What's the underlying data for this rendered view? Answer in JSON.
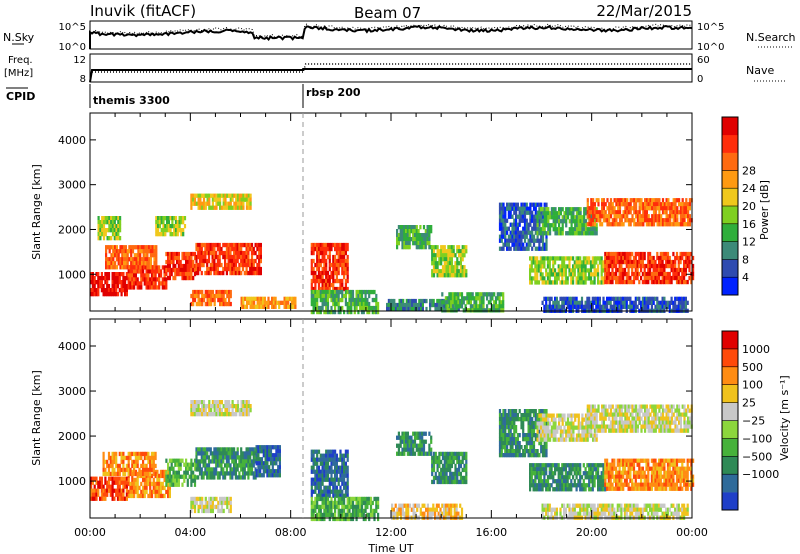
{
  "header": {
    "station": "Inuvik (fitACF)",
    "beam": "Beam 07",
    "date": "22/Mar/2015"
  },
  "top_panels": {
    "nsky_label": "N.Sky",
    "nsky_ticks": [
      "10^5",
      "10^0"
    ],
    "nsearch_label": "N.Search",
    "nsearch_ticks": [
      "10^5",
      "10^0"
    ],
    "freq_label_1": "Freq.",
    "freq_label_2": "[MHz]",
    "freq_ticks": [
      "12",
      "8"
    ],
    "nave_label": "Nave",
    "nave_ticks": [
      "60",
      "0"
    ],
    "cpid_label": "CPID",
    "cpid_modes": [
      {
        "name": "themis 3300",
        "start_hour": 0
      },
      {
        "name": "rbsp 200",
        "start_hour": 8.5
      }
    ]
  },
  "chart_data": [
    {
      "type": "heatmap",
      "title": "",
      "xlabel": "",
      "ylabel": "Slant Range [km]",
      "x_range_hours": [
        0,
        24
      ],
      "ylim": [
        180,
        4600
      ],
      "xticks": [
        "00:00",
        "04:00",
        "08:00",
        "12:00",
        "16:00",
        "20:00",
        "00:00"
      ],
      "yticks": [
        1000,
        2000,
        3000,
        4000
      ],
      "colorbar": {
        "label": "Power [dB]",
        "ticks": [
          "4",
          "8",
          "12",
          "16",
          "20",
          "24",
          "28"
        ],
        "colors": [
          "#0022ff",
          "#2f4bb0",
          "#3c8a78",
          "#2fae3b",
          "#7fd020",
          "#f0c81c",
          "#ff9a12",
          "#ff6a10",
          "#ff2d0a",
          "#e00000"
        ]
      },
      "regions": [
        {
          "t0": 0.0,
          "t1": 1.5,
          "r0": 600,
          "r1": 1050,
          "level": 9
        },
        {
          "t0": 1.5,
          "t1": 3.0,
          "r0": 700,
          "r1": 1200,
          "level": 8
        },
        {
          "t0": 0.6,
          "t1": 2.6,
          "r0": 1200,
          "r1": 1650,
          "level": 7
        },
        {
          "t0": 3.0,
          "t1": 4.2,
          "r0": 900,
          "r1": 1500,
          "level": 8
        },
        {
          "t0": 4.2,
          "t1": 6.8,
          "r0": 1050,
          "r1": 1700,
          "level": 8
        },
        {
          "t0": 4.0,
          "t1": 5.6,
          "r0": 300,
          "r1": 650,
          "level": 7
        },
        {
          "t0": 6.0,
          "t1": 8.2,
          "r0": 300,
          "r1": 500,
          "level": 6
        },
        {
          "t0": 0.3,
          "t1": 1.2,
          "r0": 1800,
          "r1": 2300,
          "level": 4
        },
        {
          "t0": 2.6,
          "t1": 3.8,
          "r0": 1900,
          "r1": 2300,
          "level": 4
        },
        {
          "t0": 4.0,
          "t1": 6.4,
          "r0": 2500,
          "r1": 2800,
          "level": 5
        },
        {
          "t0": 8.8,
          "t1": 10.3,
          "r0": 700,
          "r1": 1700,
          "level": 8
        },
        {
          "t0": 8.8,
          "t1": 11.5,
          "r0": 200,
          "r1": 650,
          "level": 3
        },
        {
          "t0": 11.8,
          "t1": 14.8,
          "r0": 200,
          "r1": 450,
          "level": 2
        },
        {
          "t0": 12.2,
          "t1": 13.6,
          "r0": 1600,
          "r1": 2100,
          "level": 3
        },
        {
          "t0": 13.6,
          "t1": 15.0,
          "r0": 1000,
          "r1": 1650,
          "level": 4
        },
        {
          "t0": 14.0,
          "t1": 16.5,
          "r0": 200,
          "r1": 600,
          "level": 3
        },
        {
          "t0": 16.3,
          "t1": 18.2,
          "r0": 1600,
          "r1": 2600,
          "level": 1
        },
        {
          "t0": 17.8,
          "t1": 20.2,
          "r0": 1900,
          "r1": 2500,
          "level": 3
        },
        {
          "t0": 19.8,
          "t1": 24.0,
          "r0": 2100,
          "r1": 2700,
          "level": 7
        },
        {
          "t0": 17.5,
          "t1": 20.5,
          "r0": 800,
          "r1": 1400,
          "level": 4
        },
        {
          "t0": 20.5,
          "t1": 24.0,
          "r0": 800,
          "r1": 1500,
          "level": 8
        },
        {
          "t0": 18.0,
          "t1": 23.8,
          "r0": 200,
          "r1": 500,
          "level": 1
        }
      ]
    },
    {
      "type": "heatmap",
      "title": "",
      "xlabel": "Time UT",
      "ylabel": "Slant Range [km]",
      "x_range_hours": [
        0,
        24
      ],
      "ylim": [
        180,
        4600
      ],
      "xticks": [
        "00:00",
        "04:00",
        "08:00",
        "12:00",
        "16:00",
        "20:00",
        "00:00"
      ],
      "yticks": [
        1000,
        2000,
        3000,
        4000
      ],
      "colorbar": {
        "label": "Velocity [m s⁻¹]",
        "ticks": [
          "1000",
          "500",
          "100",
          "25",
          "−25",
          "−100",
          "−500",
          "−1000"
        ],
        "colors": [
          "#1f3fc8",
          "#2f6b9a",
          "#2f8a56",
          "#46b23a",
          "#8cd63c",
          "#c8c8c8",
          "#f0c21c",
          "#ff8c12",
          "#ff4a0a",
          "#e00000"
        ]
      },
      "regions": [
        {
          "t0": 0.0,
          "t1": 1.5,
          "r0": 600,
          "r1": 1100,
          "level": 8
        },
        {
          "t0": 1.5,
          "t1": 3.2,
          "r0": 700,
          "r1": 1250,
          "level": 7
        },
        {
          "t0": 0.5,
          "t1": 2.6,
          "r0": 1200,
          "r1": 1650,
          "level": 7
        },
        {
          "t0": 3.0,
          "t1": 4.2,
          "r0": 900,
          "r1": 1500,
          "level": 3
        },
        {
          "t0": 4.2,
          "t1": 6.6,
          "r0": 1050,
          "r1": 1750,
          "level": 2
        },
        {
          "t0": 6.6,
          "t1": 7.6,
          "r0": 1100,
          "r1": 1800,
          "level": 1
        },
        {
          "t0": 4.0,
          "t1": 5.6,
          "r0": 300,
          "r1": 650,
          "level": 5
        },
        {
          "t0": 4.0,
          "t1": 6.4,
          "r0": 2500,
          "r1": 2800,
          "level": 5
        },
        {
          "t0": 8.8,
          "t1": 10.3,
          "r0": 700,
          "r1": 1700,
          "level": 1
        },
        {
          "t0": 8.8,
          "t1": 11.5,
          "r0": 200,
          "r1": 650,
          "level": 3
        },
        {
          "t0": 12.0,
          "t1": 14.8,
          "r0": 200,
          "r1": 500,
          "level": 6
        },
        {
          "t0": 12.2,
          "t1": 13.6,
          "r0": 1600,
          "r1": 2100,
          "level": 2
        },
        {
          "t0": 13.6,
          "t1": 15.0,
          "r0": 1000,
          "r1": 1650,
          "level": 2
        },
        {
          "t0": 16.3,
          "t1": 18.2,
          "r0": 1600,
          "r1": 2600,
          "level": 2
        },
        {
          "t0": 17.8,
          "t1": 20.2,
          "r0": 1900,
          "r1": 2500,
          "level": 5
        },
        {
          "t0": 19.8,
          "t1": 24.0,
          "r0": 2100,
          "r1": 2700,
          "level": 5
        },
        {
          "t0": 17.5,
          "t1": 20.5,
          "r0": 800,
          "r1": 1400,
          "level": 2
        },
        {
          "t0": 20.5,
          "t1": 24.0,
          "r0": 800,
          "r1": 1500,
          "level": 7
        },
        {
          "t0": 18.0,
          "t1": 23.8,
          "r0": 200,
          "r1": 500,
          "level": 5
        }
      ]
    }
  ]
}
